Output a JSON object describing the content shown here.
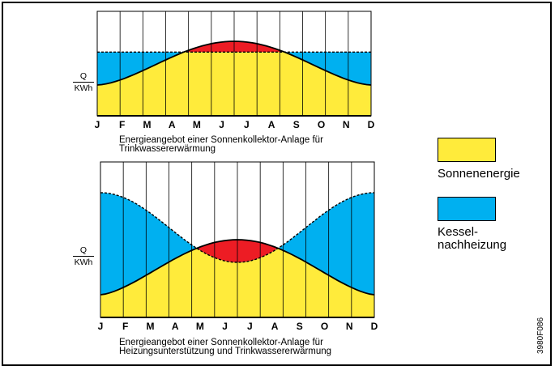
{
  "chart_data": [
    {
      "type": "area",
      "caption_line1": "Energieangebot einer Sonnenkollektor-Anlage  für",
      "caption_line2": "Trinkwassererwärmung",
      "ylabel_top": "Q",
      "ylabel_bottom": "KWh",
      "categories": [
        "J",
        "F",
        "M",
        "A",
        "M",
        "J",
        "J",
        "A",
        "S",
        "O",
        "N",
        "D"
      ],
      "series": [
        {
          "color": "#ffeb3b"
        },
        {
          "color": "#00b0f0"
        },
        {
          "color": "#ed1c24"
        }
      ]
    },
    {
      "type": "area",
      "caption_line1": "Energieangebot einer Sonnenkollektor-Anlage  für",
      "caption_line2": "Heizungsunterstützung und Trinkwassererwärmung",
      "ylabel_top": "Q",
      "ylabel_bottom": "KWh",
      "categories": [
        "J",
        "F",
        "M",
        "A",
        "M",
        "J",
        "J",
        "A",
        "S",
        "O",
        "N",
        "D"
      ],
      "series": [
        {
          "color": "#ffeb3b"
        },
        {
          "color": "#00b0f0"
        },
        {
          "color": "#ed1c24"
        }
      ]
    }
  ],
  "legend": {
    "solar_label": "Sonnenenergie",
    "boiler_label_line1": "Kessel-",
    "boiler_label_line2": "nachheizung",
    "solar_color": "#ffeb3b",
    "boiler_color": "#00b0f0"
  },
  "figure_code": "3980F086"
}
